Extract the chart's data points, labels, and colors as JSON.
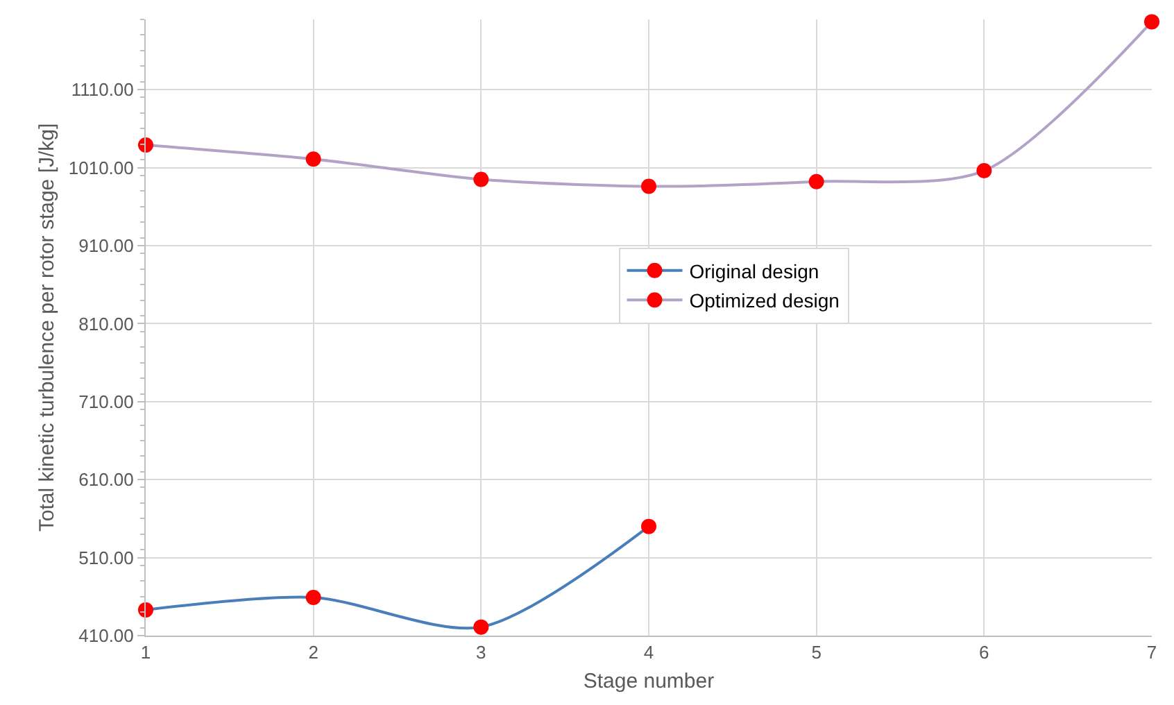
{
  "chart_data": {
    "type": "line",
    "xlabel": "Stage number",
    "ylabel": "Total kinetic turbulence per rotor stage [J/kg]",
    "x": [
      1,
      2,
      3,
      4,
      5,
      6,
      7
    ],
    "series": [
      {
        "name": "Original design",
        "color": "#4a7ebb",
        "colors": [
          "#ff0000",
          "#ff0000",
          "#ff0000",
          "#ff0000"
        ],
        "x": [
          1,
          2,
          3,
          4
        ],
        "values": [
          443,
          459,
          421,
          550
        ]
      },
      {
        "name": "Optimized design",
        "color": "#b3a2c7",
        "colors": [
          "#ff0000",
          "#ff0000",
          "#ff0000",
          "#ff0000",
          "#ff0000",
          "#ff0000",
          "#ff0000"
        ],
        "values": [
          1039,
          1021,
          995,
          986,
          992,
          1006,
          1197
        ]
      }
    ],
    "xlim": [
      1,
      7
    ],
    "xticks": [
      1,
      2,
      3,
      4,
      5,
      6,
      7
    ],
    "ylim": [
      410,
      1200
    ],
    "yticks": [
      {
        "value": 410,
        "label": "410.00"
      },
      {
        "value": 510,
        "label": "510.00"
      },
      {
        "value": 610,
        "label": "610.00"
      },
      {
        "value": 710,
        "label": "710.00"
      },
      {
        "value": 810,
        "label": "810.00"
      },
      {
        "value": 910,
        "label": "910.00"
      },
      {
        "value": 1010,
        "label": "1010.00"
      },
      {
        "value": 1110,
        "label": "1110.00"
      }
    ],
    "grid": true,
    "legend": "right",
    "marker": "circle",
    "line_style": "solid"
  }
}
